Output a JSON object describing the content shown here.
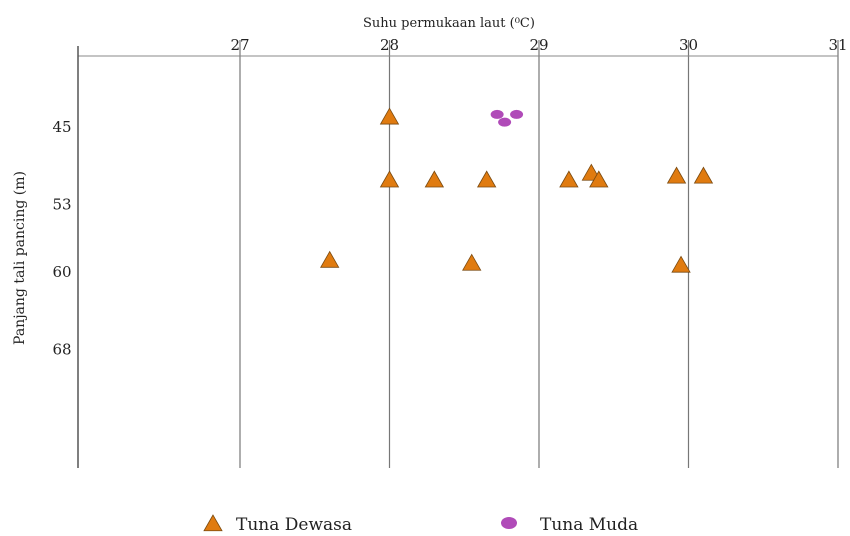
{
  "chart_data": {
    "type": "scatter",
    "xlabel": "Suhu permukaan laut (⁰C)",
    "ylabel": "Panjang tali pancing  (m)",
    "x_ticks": [
      "27",
      "28",
      "29",
      "30",
      "31"
    ],
    "y_ticks": [
      "45",
      "53",
      "60",
      "68"
    ],
    "grid": "vertical",
    "legend_position": "bottom",
    "series": [
      {
        "name": "Tuna Dewasa",
        "marker": "triangle",
        "color": "#e07b10",
        "points": [
          [
            28.0,
            44.0
          ],
          [
            28.0,
            50.5
          ],
          [
            28.3,
            50.5
          ],
          [
            28.65,
            50.5
          ],
          [
            29.2,
            50.5
          ],
          [
            29.35,
            49.8
          ],
          [
            29.4,
            50.5
          ],
          [
            29.92,
            50.1
          ],
          [
            30.1,
            50.1
          ],
          [
            27.6,
            58.8
          ],
          [
            28.55,
            59.1
          ],
          [
            29.95,
            59.3
          ]
        ]
      },
      {
        "name": "Tuna Muda",
        "marker": "ellipse",
        "color": "#b04bb8",
        "points": [
          [
            28.72,
            43.7
          ],
          [
            28.85,
            43.7
          ],
          [
            28.77,
            44.5
          ]
        ]
      }
    ]
  }
}
